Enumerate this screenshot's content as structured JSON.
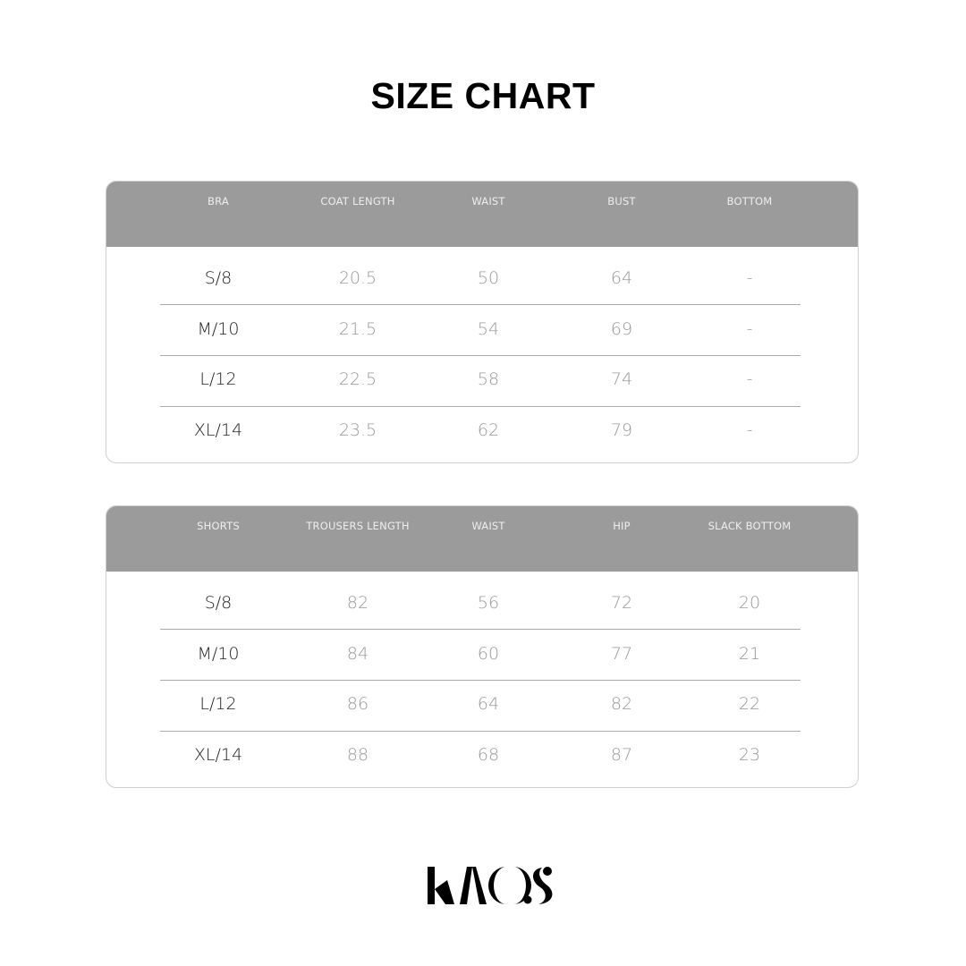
{
  "title": "SIZE CHART",
  "tables": [
    {
      "headers": [
        "BRA",
        "COAT LENGTH",
        "WAIST",
        "BUST",
        "BOTTOM"
      ],
      "rows": [
        [
          "S/8",
          "20.5",
          "50",
          "64",
          "-"
        ],
        [
          "M/10",
          "21.5",
          "54",
          "69",
          "-"
        ],
        [
          "L/12",
          "22.5",
          "58",
          "74",
          "-"
        ],
        [
          "XL/14",
          "23.5",
          "62",
          "79",
          "-"
        ]
      ]
    },
    {
      "headers": [
        "SHORTS",
        "TROUSERS LENGTH",
        "WAIST",
        "HIP",
        "SLACK BOTTOM"
      ],
      "rows": [
        [
          "S/8",
          "82",
          "56",
          "72",
          "20"
        ],
        [
          "M/10",
          "84",
          "60",
          "77",
          "21"
        ],
        [
          "L/12",
          "86",
          "64",
          "82",
          "22"
        ],
        [
          "XL/14",
          "88",
          "68",
          "87",
          "23"
        ]
      ]
    }
  ],
  "logo": {
    "text": "KAOS"
  }
}
